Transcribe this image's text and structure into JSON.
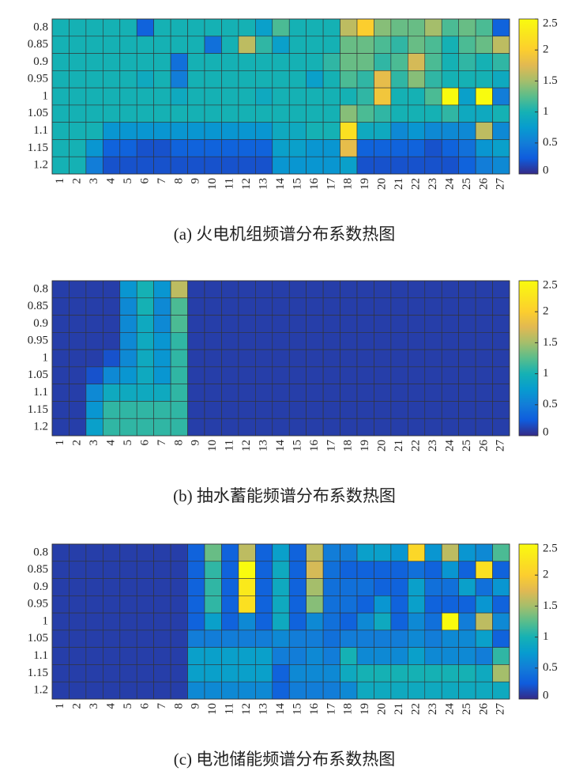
{
  "chart_data": [
    {
      "type": "heatmap",
      "caption": "(a)  火电机组频谱分布系数热图",
      "colormap": "parula",
      "x": [
        "1",
        "2",
        "3",
        "4",
        "5",
        "6",
        "7",
        "8",
        "9",
        "10",
        "11",
        "12",
        "13",
        "14",
        "15",
        "16",
        "17",
        "18",
        "19",
        "20",
        "21",
        "22",
        "23",
        "24",
        "25",
        "26",
        "27"
      ],
      "y": [
        "0.8",
        "0.85",
        "0.9",
        "0.95",
        "1",
        "1.05",
        "1.1",
        "1.15",
        "1.2"
      ],
      "zlim": [
        0,
        2.5
      ],
      "zticks": [
        0,
        0.5,
        1,
        1.5,
        2,
        2.5
      ],
      "values": [
        [
          1,
          1,
          1,
          1,
          1,
          0.3,
          1,
          1,
          1,
          1,
          1,
          1,
          0.8,
          1.2,
          1,
          1,
          1,
          1.6,
          2.0,
          1.4,
          1.3,
          1.3,
          1.5,
          1.2,
          1.3,
          1.2,
          0.3
        ],
        [
          1,
          1,
          1,
          1,
          1,
          1,
          1,
          1,
          1,
          0.4,
          1,
          1.6,
          1.1,
          0.8,
          1,
          1,
          1,
          1.3,
          1.3,
          1.2,
          1.1,
          1.3,
          1.2,
          1,
          1.2,
          1.3,
          1.6
        ],
        [
          1,
          1,
          1,
          1,
          1,
          1,
          1,
          0.4,
          1,
          1,
          1,
          1,
          1,
          1,
          1,
          1,
          1.1,
          1.3,
          1.3,
          1.1,
          1.2,
          1.7,
          1.2,
          1,
          1.1,
          1,
          1.1
        ],
        [
          1,
          1,
          1,
          1,
          1,
          0.9,
          1,
          0.5,
          1,
          1,
          1,
          1,
          1,
          1,
          1,
          0.8,
          1,
          1.2,
          1.1,
          1.8,
          1.1,
          1.4,
          1.1,
          1,
          1,
          1,
          0.9
        ],
        [
          1,
          1,
          1,
          1,
          1,
          1,
          1,
          0.9,
          1,
          1,
          1,
          1,
          0.9,
          1,
          1,
          1,
          1,
          1,
          1.1,
          1.9,
          1,
          1,
          1.2,
          2.5,
          0.8,
          2.5,
          0.5
        ],
        [
          1,
          1,
          1,
          1,
          1,
          1,
          1,
          1,
          1,
          1,
          1,
          1,
          1,
          1,
          1,
          1,
          1,
          1.4,
          1.2,
          1.1,
          1,
          1,
          1,
          1.1,
          0.9,
          0.9,
          1
        ],
        [
          1,
          1,
          1,
          0.7,
          0.7,
          0.7,
          0.7,
          0.7,
          0.7,
          0.7,
          0.7,
          0.7,
          0.7,
          0.9,
          0.9,
          1,
          1,
          2.2,
          0.9,
          0.9,
          0.6,
          0.7,
          0.6,
          0.6,
          0.6,
          1.6,
          0.6
        ],
        [
          1,
          1,
          0.7,
          0.3,
          0.3,
          0.2,
          0.2,
          0.3,
          0.3,
          0.3,
          0.3,
          0.3,
          0.3,
          0.8,
          0.8,
          0.7,
          0.7,
          1.8,
          0.3,
          0.3,
          0.3,
          0.3,
          0.2,
          0.3,
          0.4,
          0.7,
          0.8
        ],
        [
          1,
          1,
          0.5,
          0.2,
          0.2,
          0.2,
          0.2,
          0.2,
          0.2,
          0.2,
          0.2,
          0.2,
          0.2,
          0.7,
          0.7,
          0.7,
          0.7,
          0.8,
          0.2,
          0.2,
          0.2,
          0.2,
          0.2,
          0.2,
          0.3,
          0.5,
          0.6
        ]
      ]
    },
    {
      "type": "heatmap",
      "caption": "(b)  抽水蓄能频谱分布系数热图",
      "colormap": "parula",
      "x": [
        "1",
        "2",
        "3",
        "4",
        "5",
        "6",
        "7",
        "8",
        "9",
        "10",
        "11",
        "12",
        "13",
        "14",
        "15",
        "16",
        "17",
        "18",
        "19",
        "20",
        "21",
        "22",
        "23",
        "24",
        "25",
        "26",
        "27"
      ],
      "y": [
        "0.8",
        "0.85",
        "0.9",
        "0.95",
        "1",
        "1.05",
        "1.1",
        "1.15",
        "1.2"
      ],
      "zlim": [
        0,
        2.5
      ],
      "zticks": [
        0,
        0.5,
        1,
        1.5,
        2,
        2.5
      ],
      "values": [
        [
          0.1,
          0.1,
          0.1,
          0.1,
          0.7,
          1.0,
          0.7,
          1.6,
          0.1,
          0.1,
          0.1,
          0.1,
          0.1,
          0.1,
          0.1,
          0.1,
          0.1,
          0.1,
          0.1,
          0.1,
          0.1,
          0.1,
          0.1,
          0.1,
          0.1,
          0.1,
          0.1
        ],
        [
          0.1,
          0.1,
          0.1,
          0.1,
          0.6,
          1.0,
          0.6,
          1.2,
          0.1,
          0.1,
          0.1,
          0.1,
          0.1,
          0.1,
          0.1,
          0.1,
          0.1,
          0.1,
          0.1,
          0.1,
          0.1,
          0.1,
          0.1,
          0.1,
          0.1,
          0.1,
          0.1
        ],
        [
          0.1,
          0.1,
          0.1,
          0.1,
          0.6,
          0.9,
          0.6,
          1.2,
          0.1,
          0.1,
          0.1,
          0.1,
          0.1,
          0.1,
          0.1,
          0.1,
          0.1,
          0.1,
          0.1,
          0.1,
          0.1,
          0.1,
          0.1,
          0.1,
          0.1,
          0.1,
          0.1
        ],
        [
          0.1,
          0.1,
          0.1,
          0.1,
          0.6,
          0.9,
          0.7,
          1.1,
          0.1,
          0.1,
          0.1,
          0.1,
          0.1,
          0.1,
          0.1,
          0.1,
          0.1,
          0.1,
          0.1,
          0.1,
          0.1,
          0.1,
          0.1,
          0.1,
          0.1,
          0.1,
          0.1
        ],
        [
          0.1,
          0.1,
          0.1,
          0.2,
          0.6,
          0.9,
          0.7,
          1.1,
          0.1,
          0.1,
          0.1,
          0.1,
          0.1,
          0.1,
          0.1,
          0.1,
          0.1,
          0.1,
          0.1,
          0.1,
          0.1,
          0.1,
          0.1,
          0.1,
          0.1,
          0.1,
          0.1
        ],
        [
          0.1,
          0.1,
          0.2,
          0.6,
          0.7,
          0.9,
          0.7,
          1.1,
          0.1,
          0.1,
          0.1,
          0.1,
          0.1,
          0.1,
          0.1,
          0.1,
          0.1,
          0.1,
          0.1,
          0.1,
          0.1,
          0.1,
          0.1,
          0.1,
          0.1,
          0.1,
          0.1
        ],
        [
          0.1,
          0.1,
          0.6,
          0.9,
          0.9,
          0.9,
          0.9,
          1.1,
          0.1,
          0.1,
          0.1,
          0.1,
          0.1,
          0.1,
          0.1,
          0.1,
          0.1,
          0.1,
          0.1,
          0.1,
          0.1,
          0.1,
          0.1,
          0.1,
          0.1,
          0.1,
          0.1
        ],
        [
          0.1,
          0.1,
          0.7,
          1.1,
          1.1,
          1.1,
          1.1,
          1.1,
          0.1,
          0.1,
          0.1,
          0.1,
          0.1,
          0.1,
          0.1,
          0.1,
          0.1,
          0.1,
          0.1,
          0.1,
          0.1,
          0.1,
          0.1,
          0.1,
          0.1,
          0.1,
          0.1
        ],
        [
          0.1,
          0.1,
          0.8,
          1.1,
          1.1,
          1.1,
          1.1,
          1.1,
          0.1,
          0.1,
          0.1,
          0.1,
          0.1,
          0.1,
          0.1,
          0.1,
          0.1,
          0.1,
          0.1,
          0.1,
          0.1,
          0.1,
          0.1,
          0.1,
          0.1,
          0.1,
          0.1
        ]
      ]
    },
    {
      "type": "heatmap",
      "caption": "(c)  电池储能频谱分布系数热图",
      "colormap": "parula",
      "x": [
        "1",
        "2",
        "3",
        "4",
        "5",
        "6",
        "7",
        "8",
        "9",
        "10",
        "11",
        "12",
        "13",
        "14",
        "15",
        "16",
        "17",
        "18",
        "19",
        "20",
        "21",
        "22",
        "23",
        "24",
        "25",
        "26",
        "27"
      ],
      "y": [
        "0.8",
        "0.85",
        "0.9",
        "0.95",
        "1",
        "1.05",
        "1.1",
        "1.15",
        "1.2"
      ],
      "zlim": [
        0,
        2.5
      ],
      "zticks": [
        0,
        0.5,
        1,
        1.5,
        2,
        2.5
      ],
      "values": [
        [
          0.1,
          0.1,
          0.1,
          0.1,
          0.1,
          0.1,
          0.1,
          0.1,
          0.3,
          1.3,
          0.3,
          1.6,
          0.3,
          0.8,
          0.3,
          1.6,
          0.5,
          0.5,
          0.8,
          0.8,
          0.7,
          2.1,
          0.7,
          1.6,
          0.7,
          0.6,
          1.2
        ],
        [
          0.1,
          0.1,
          0.1,
          0.1,
          0.1,
          0.1,
          0.1,
          0.1,
          0.3,
          1.1,
          0.3,
          2.5,
          0.3,
          0.9,
          0.3,
          1.7,
          0.4,
          0.3,
          0.3,
          0.3,
          0.3,
          0.4,
          0.3,
          0.7,
          0.3,
          2.2,
          0.3
        ],
        [
          0.1,
          0.1,
          0.1,
          0.1,
          0.1,
          0.1,
          0.1,
          0.1,
          0.3,
          1.1,
          0.3,
          2.3,
          0.3,
          0.9,
          0.3,
          1.5,
          0.4,
          0.4,
          0.4,
          0.3,
          0.3,
          0.8,
          0.4,
          0.4,
          0.8,
          0.4,
          0.7
        ],
        [
          0.1,
          0.1,
          0.1,
          0.1,
          0.1,
          0.1,
          0.1,
          0.1,
          0.3,
          1.1,
          0.3,
          2.2,
          0.3,
          0.9,
          0.3,
          1.4,
          0.4,
          0.4,
          0.3,
          0.7,
          0.3,
          0.8,
          0.3,
          0.3,
          0.3,
          0.7,
          0.3
        ],
        [
          0.1,
          0.1,
          0.1,
          0.1,
          0.1,
          0.1,
          0.1,
          0.1,
          0.3,
          0.8,
          0.3,
          0.6,
          0.3,
          0.9,
          0.3,
          0.6,
          0.4,
          0.3,
          0.6,
          0.9,
          0.3,
          0.6,
          0.4,
          2.5,
          0.5,
          1.6,
          0.6
        ],
        [
          0.1,
          0.1,
          0.1,
          0.1,
          0.1,
          0.1,
          0.1,
          0.1,
          0.5,
          0.5,
          0.5,
          0.5,
          0.5,
          0.6,
          0.5,
          0.5,
          0.4,
          0.5,
          0.5,
          0.5,
          0.5,
          0.6,
          0.5,
          0.6,
          0.6,
          0.8,
          0.3
        ],
        [
          0.1,
          0.1,
          0.1,
          0.1,
          0.1,
          0.1,
          0.1,
          0.1,
          0.8,
          0.8,
          0.8,
          0.8,
          0.8,
          0.5,
          0.5,
          0.6,
          0.5,
          1.0,
          0.6,
          0.6,
          0.6,
          0.8,
          0.6,
          0.6,
          0.6,
          0.5,
          1.1
        ],
        [
          0.1,
          0.1,
          0.1,
          0.1,
          0.1,
          0.1,
          0.1,
          0.1,
          0.8,
          0.8,
          0.8,
          0.8,
          0.8,
          0.3,
          0.6,
          0.6,
          0.6,
          0.9,
          1.0,
          1.0,
          1.0,
          1.0,
          1.0,
          1.0,
          1.0,
          0.9,
          1.5
        ],
        [
          0.1,
          0.1,
          0.1,
          0.1,
          0.1,
          0.1,
          0.1,
          0.1,
          0.6,
          0.6,
          0.6,
          0.6,
          0.6,
          0.3,
          0.5,
          0.5,
          0.5,
          0.6,
          0.9,
          0.9,
          0.9,
          0.9,
          0.9,
          0.9,
          0.9,
          0.9,
          0.9
        ]
      ]
    }
  ]
}
